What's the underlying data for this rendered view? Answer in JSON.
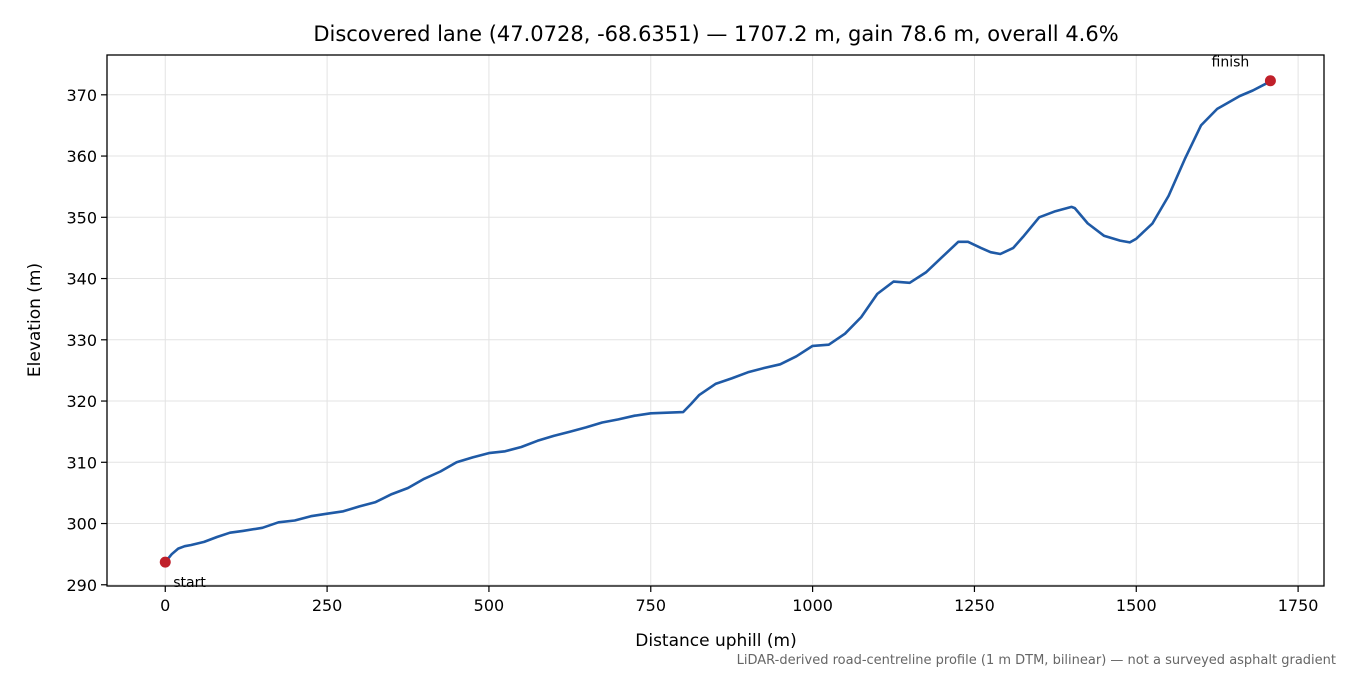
{
  "chart_data": {
    "type": "line",
    "title": "Discovered lane (47.0728, -68.6351) — 1707.2 m, gain 78.6 m, overall 4.6%",
    "xlabel": "Distance uphill (m)",
    "ylabel": "Elevation (m)",
    "footnote": "LiDAR-derived road-centreline profile (1 m DTM, bilinear) — not a surveyed asphalt gradient",
    "xlim": [
      -90,
      1790
    ],
    "ylim": [
      289.8,
      376.5
    ],
    "xticks": [
      0,
      250,
      500,
      750,
      1000,
      1250,
      1500,
      1750
    ],
    "yticks": [
      290,
      300,
      310,
      320,
      330,
      340,
      350,
      360,
      370
    ],
    "grid": true,
    "colors": {
      "line": "#1f5aa6",
      "marker": "#c0202a"
    },
    "series": [
      {
        "x": [
          0,
          10,
          20,
          30,
          40,
          60,
          80,
          100,
          120,
          150,
          175,
          200,
          225,
          250,
          275,
          300,
          325,
          350,
          375,
          400,
          425,
          450,
          475,
          500,
          525,
          550,
          575,
          600,
          625,
          650,
          675,
          700,
          725,
          750,
          775,
          800,
          812,
          825,
          850,
          875,
          900,
          925,
          950,
          975,
          1000,
          1025,
          1050,
          1075,
          1100,
          1125,
          1150,
          1175,
          1200,
          1225,
          1240,
          1260,
          1275,
          1290,
          1310,
          1325,
          1350,
          1375,
          1400,
          1405,
          1425,
          1450,
          1475,
          1490,
          1500,
          1525,
          1550,
          1575,
          1600,
          1625,
          1640,
          1660,
          1680,
          1700,
          1707.2
        ],
        "y": [
          293.7,
          295.0,
          295.9,
          296.3,
          296.5,
          297.0,
          297.8,
          298.5,
          298.8,
          299.3,
          300.2,
          300.5,
          301.2,
          301.6,
          302.0,
          302.8,
          303.5,
          304.8,
          305.8,
          307.3,
          308.5,
          310.0,
          310.8,
          311.5,
          311.8,
          312.5,
          313.5,
          314.3,
          315.0,
          315.7,
          316.5,
          317.0,
          317.6,
          318.0,
          318.1,
          318.2,
          319.5,
          321.0,
          322.8,
          323.7,
          324.7,
          325.4,
          326.0,
          327.3,
          329.0,
          329.2,
          331.0,
          333.7,
          337.5,
          339.5,
          339.3,
          341.0,
          343.5,
          346.0,
          346.0,
          345.0,
          344.3,
          344.0,
          345.0,
          346.8,
          350.0,
          351.0,
          351.7,
          351.5,
          349.0,
          347.0,
          346.2,
          345.9,
          346.5,
          349.0,
          353.5,
          359.5,
          365.0,
          367.7,
          368.6,
          369.8,
          370.7,
          371.8,
          372.3
        ]
      }
    ],
    "annotations": [
      {
        "text": "start",
        "x": 0,
        "y": 293.7
      },
      {
        "text": "finish",
        "x": 1707.2,
        "y": 372.3
      }
    ]
  }
}
